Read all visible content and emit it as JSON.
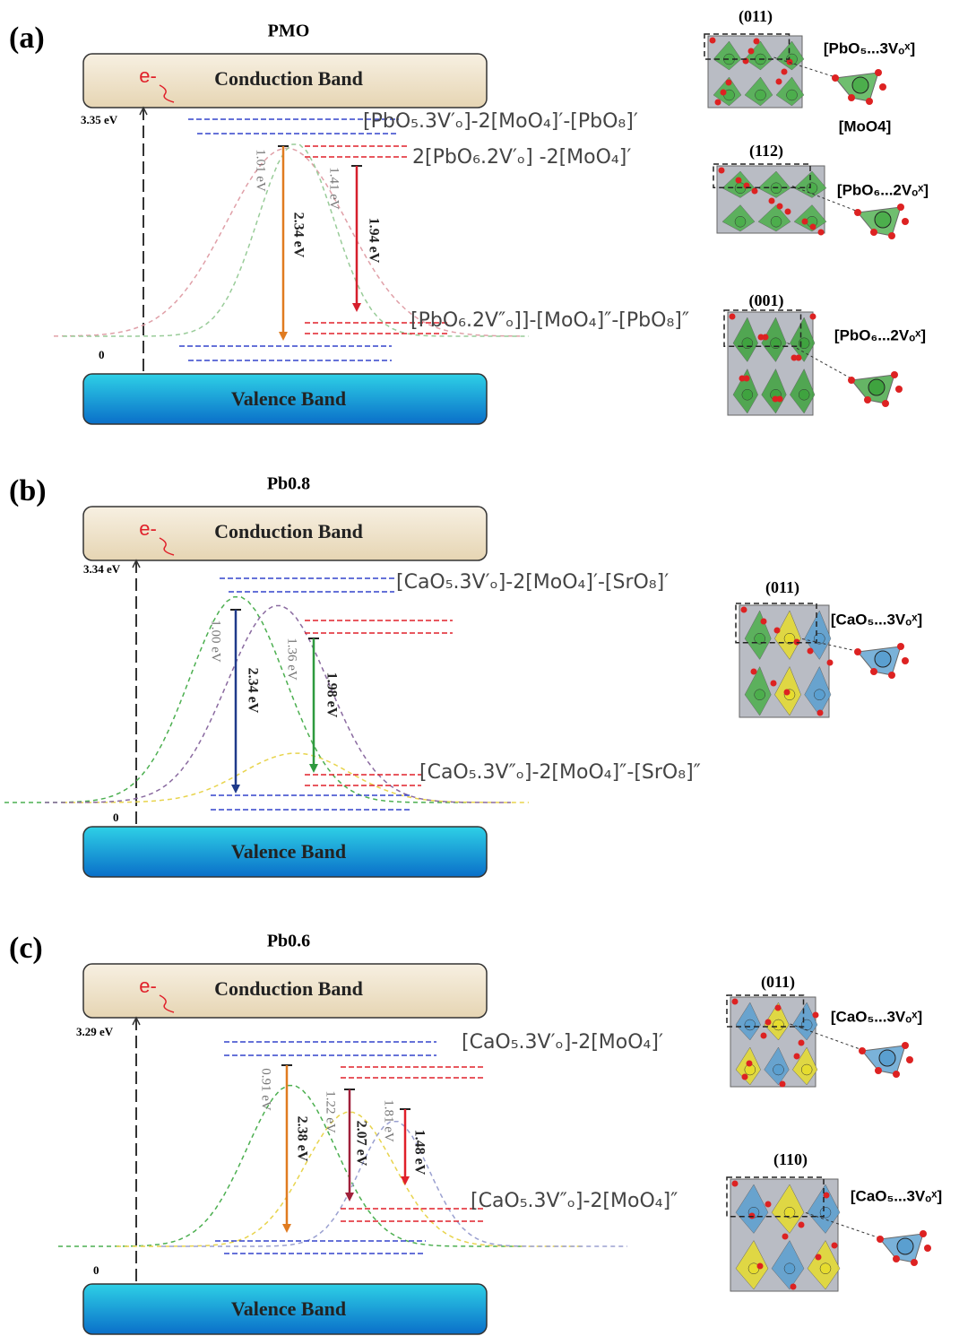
{
  "panels": [
    {
      "label": "(a)",
      "title": "PMO",
      "electron": "e-",
      "conduction_band": "Conduction Band",
      "valence_band": "Valence Band",
      "cb_energy": "3.35 eV",
      "vb_energy": "0",
      "levels": [
        "[PbO₅.3V′ₒ]-2[MoO₄]′-[PbO₈]′",
        "2[PbO₆.2V′ₒ] -2[MoO₄]′",
        "[PbO₆.2V″ₒ]]-[MoO₄]″-[PbO₈]″"
      ],
      "peaks": [
        "1.01 eV",
        "1.41 eV"
      ],
      "transitions": [
        "2.34 eV",
        "1.94 eV"
      ],
      "structures": [
        {
          "facet": "(011)",
          "labels": [
            "[PbO₅...3Vₒˣ]",
            "[MoO4]"
          ]
        },
        {
          "facet": "(112)",
          "labels": [
            "[PbO₆...2Vₒˣ]"
          ]
        },
        {
          "facet": "(001)",
          "labels": [
            "[PbO₆...2Vₒˣ]"
          ]
        }
      ]
    },
    {
      "label": "(b)",
      "title": "Pb0.8",
      "electron": "e-",
      "conduction_band": "Conduction Band",
      "valence_band": "Valence Band",
      "cb_energy": "3.34 eV",
      "vb_energy": "0",
      "levels": [
        "[CaO₅.3V′ₒ]-2[MoO₄]′-[SrO₈]′",
        "[CaO₅.3V″ₒ]-2[MoO₄]″-[SrO₈]″"
      ],
      "peaks": [
        "1.00 eV",
        "1.36 eV"
      ],
      "transitions": [
        "2.34 eV",
        "1.98 eV"
      ],
      "structures": [
        {
          "facet": "(011)",
          "labels": [
            "[CaO₅...3Vₒˣ]"
          ]
        }
      ]
    },
    {
      "label": "(c)",
      "title": "Pb0.6",
      "electron": "e-",
      "conduction_band": "Conduction Band",
      "valence_band": "Valence Band",
      "cb_energy": "3.29 eV",
      "vb_energy": "0",
      "levels": [
        "[CaO₅.3V′ₒ]-2[MoO₄]′",
        "[CaO₅.3V″ₒ]-2[MoO₄]″"
      ],
      "peaks": [
        "0.91 eV",
        "1.22 eV",
        "1.81 eV"
      ],
      "transitions": [
        "2.38 eV",
        "2.07 eV",
        "1.48 eV"
      ],
      "structures": [
        {
          "facet": "(011)",
          "labels": [
            "[CaO₅...3Vₒˣ]"
          ]
        },
        {
          "facet": "(110)",
          "labels": [
            "[CaO₅...3Vₒˣ]"
          ]
        }
      ]
    }
  ]
}
